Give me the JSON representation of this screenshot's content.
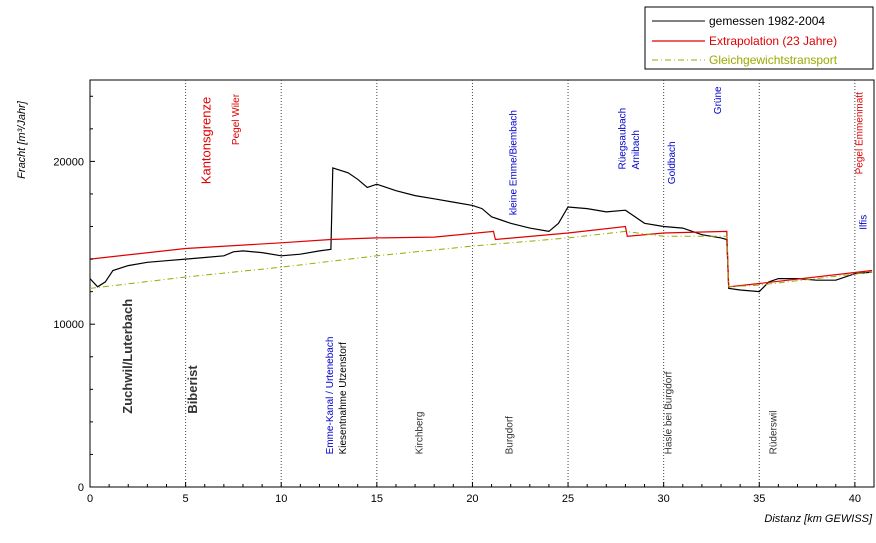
{
  "chart_data": {
    "type": "line",
    "xlabel": "Distanz [km GEWISS]",
    "ylabel": "Fracht [m³/Jahr]",
    "xlim": [
      0,
      41
    ],
    "ylim": [
      0,
      25000
    ],
    "xticks": [
      "0",
      "5",
      "10",
      "15",
      "20",
      "25",
      "30",
      "35",
      "40"
    ],
    "yticks": [
      "0",
      "10000",
      "20000"
    ],
    "legend_position": "top-right",
    "vertical_markers": [
      5,
      10,
      15,
      20,
      25,
      30,
      35,
      40
    ],
    "series": [
      {
        "name": "gemessen 1982-2004",
        "color": "#000000",
        "style": "solid",
        "points": [
          [
            0,
            12800
          ],
          [
            0.4,
            12300
          ],
          [
            0.8,
            12600
          ],
          [
            1.2,
            13300
          ],
          [
            2,
            13600
          ],
          [
            3,
            13800
          ],
          [
            4,
            13900
          ],
          [
            5,
            14000
          ],
          [
            6,
            14100
          ],
          [
            7,
            14200
          ],
          [
            7.5,
            14450
          ],
          [
            8,
            14500
          ],
          [
            9,
            14400
          ],
          [
            10,
            14200
          ],
          [
            11,
            14300
          ],
          [
            12,
            14500
          ],
          [
            12.6,
            14600
          ],
          [
            12.7,
            19600
          ],
          [
            13.5,
            19300
          ],
          [
            14,
            18900
          ],
          [
            14.5,
            18400
          ],
          [
            15,
            18600
          ],
          [
            16,
            18200
          ],
          [
            17,
            17900
          ],
          [
            18,
            17700
          ],
          [
            19,
            17500
          ],
          [
            20,
            17300
          ],
          [
            20.5,
            17100
          ],
          [
            21,
            16600
          ],
          [
            21.5,
            16400
          ],
          [
            22,
            16200
          ],
          [
            23,
            15900
          ],
          [
            24,
            15700
          ],
          [
            24.5,
            16200
          ],
          [
            25,
            17200
          ],
          [
            26,
            17100
          ],
          [
            27,
            16900
          ],
          [
            28,
            17000
          ],
          [
            28.5,
            16600
          ],
          [
            29,
            16200
          ],
          [
            30,
            16000
          ],
          [
            31,
            15900
          ],
          [
            32,
            15500
          ],
          [
            33,
            15300
          ],
          [
            33.3,
            15200
          ],
          [
            33.4,
            12200
          ],
          [
            34,
            12100
          ],
          [
            35,
            12000
          ],
          [
            35.5,
            12600
          ],
          [
            36,
            12800
          ],
          [
            37,
            12800
          ],
          [
            38,
            12700
          ],
          [
            39,
            12700
          ],
          [
            40,
            13100
          ],
          [
            40.9,
            13200
          ]
        ]
      },
      {
        "name": "Extrapolation (23 Jahre)",
        "color": "#e00000",
        "style": "solid",
        "points": [
          [
            0,
            14000
          ],
          [
            5,
            14650
          ],
          [
            10,
            15000
          ],
          [
            12.6,
            15200
          ],
          [
            15,
            15300
          ],
          [
            18,
            15350
          ],
          [
            21.1,
            15700
          ],
          [
            21.2,
            15200
          ],
          [
            25,
            15600
          ],
          [
            28,
            16000
          ],
          [
            28.1,
            15400
          ],
          [
            30,
            15600
          ],
          [
            33.3,
            15700
          ],
          [
            33.4,
            12300
          ],
          [
            35,
            12500
          ],
          [
            40.9,
            13300
          ]
        ]
      },
      {
        "name": "Gleichgewichtstransport",
        "color": "#9aaa00",
        "style": "dashdot",
        "points": [
          [
            0,
            12200
          ],
          [
            5,
            12900
          ],
          [
            10,
            13500
          ],
          [
            15,
            14200
          ],
          [
            20,
            14800
          ],
          [
            25,
            15300
          ],
          [
            28,
            15700
          ],
          [
            30,
            15400
          ],
          [
            33.3,
            15400
          ],
          [
            33.4,
            12300
          ],
          [
            35,
            12400
          ],
          [
            40.9,
            13200
          ]
        ]
      }
    ],
    "annotations": [
      {
        "text": "Zuchwil/Luterbach",
        "x": 2.2,
        "y": 4500,
        "color": "#333333",
        "bold": true,
        "size": 13
      },
      {
        "text": "Biberist",
        "x": 5.6,
        "y": 4500,
        "color": "#333333",
        "bold": true,
        "size": 13
      },
      {
        "text": "Kantonsgrenze",
        "x": 6.3,
        "y": 18600,
        "color": "#e00000",
        "bold": false,
        "size": 13
      },
      {
        "text": "Pegel Wiler",
        "x": 7.8,
        "y": 21000,
        "color": "#e00000",
        "bold": false,
        "size": 10
      },
      {
        "text": "Emme-Kanal / Urtenebach",
        "x": 12.7,
        "y": 2000,
        "color": "#0000cc",
        "bold": false,
        "size": 10
      },
      {
        "text": "Kiesentnahme Utzenstorf",
        "x": 13.4,
        "y": 2000,
        "color": "#000000",
        "bold": false,
        "size": 10
      },
      {
        "text": "Kirchberg",
        "x": 17.4,
        "y": 2000,
        "color": "#333333",
        "bold": false,
        "size": 10
      },
      {
        "text": "Burgdorf",
        "x": 22.1,
        "y": 2000,
        "color": "#333333",
        "bold": false,
        "size": 10
      },
      {
        "text": "kleine Emme/Biembach",
        "x": 22.3,
        "y": 16700,
        "color": "#0000cc",
        "bold": false,
        "size": 10
      },
      {
        "text": "Rüegsaubach",
        "x": 28.0,
        "y": 19500,
        "color": "#0000cc",
        "bold": false,
        "size": 10
      },
      {
        "text": "Arnibach",
        "x": 28.7,
        "y": 19500,
        "color": "#0000cc",
        "bold": false,
        "size": 10
      },
      {
        "text": "Goldbach",
        "x": 30.6,
        "y": 18600,
        "color": "#0000cc",
        "bold": false,
        "size": 10
      },
      {
        "text": "Grüne",
        "x": 33.0,
        "y": 22900,
        "color": "#0000cc",
        "bold": false,
        "size": 10
      },
      {
        "text": "Hasle bei Burgdorf",
        "x": 30.4,
        "y": 2000,
        "color": "#333333",
        "bold": false,
        "size": 10
      },
      {
        "text": "Rüderswil",
        "x": 35.9,
        "y": 2000,
        "color": "#333333",
        "bold": false,
        "size": 10
      },
      {
        "text": "Pegel Emmenmatt",
        "x": 40.4,
        "y": 19200,
        "color": "#e00000",
        "bold": false,
        "size": 10
      },
      {
        "text": "Ilfis",
        "x": 40.6,
        "y": 15800,
        "color": "#0000cc",
        "bold": false,
        "size": 10
      }
    ]
  }
}
